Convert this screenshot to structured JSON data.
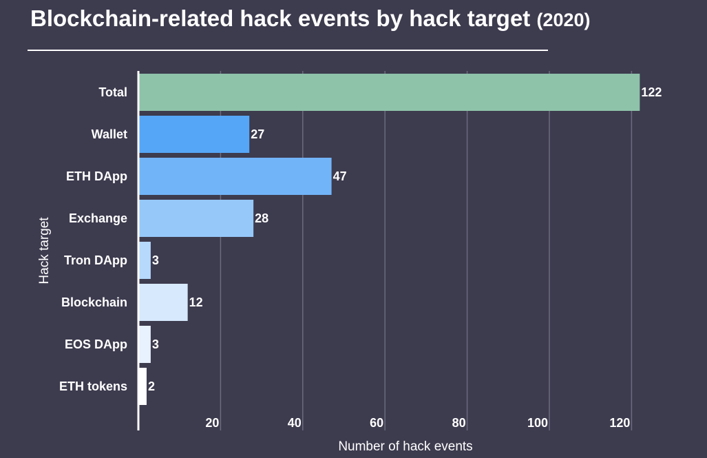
{
  "header": {
    "title": "Blockchain-related hack events by hack target",
    "subtitle": "(2020)"
  },
  "chart_data": {
    "type": "bar",
    "orientation": "horizontal",
    "title": "Blockchain-related hack events by hack target (2020)",
    "xlabel": "Number of hack events",
    "ylabel": "Hack target",
    "xlim": [
      0,
      122
    ],
    "xticks": [
      20,
      40,
      60,
      80,
      100,
      120
    ],
    "grid": true,
    "categories": [
      "Total",
      "Wallet",
      "ETH DApp",
      "Exchange",
      "Tron DApp",
      "Blockchain",
      "EOS DApp",
      "ETH tokens"
    ],
    "values": [
      122,
      27,
      47,
      28,
      3,
      12,
      3,
      2
    ],
    "colors": [
      "#8ec3aa",
      "#56a6f8",
      "#72b4f8",
      "#96c8fa",
      "#b6d9fc",
      "#d6e9fd",
      "#e8f1fe",
      "#ffffff"
    ]
  }
}
